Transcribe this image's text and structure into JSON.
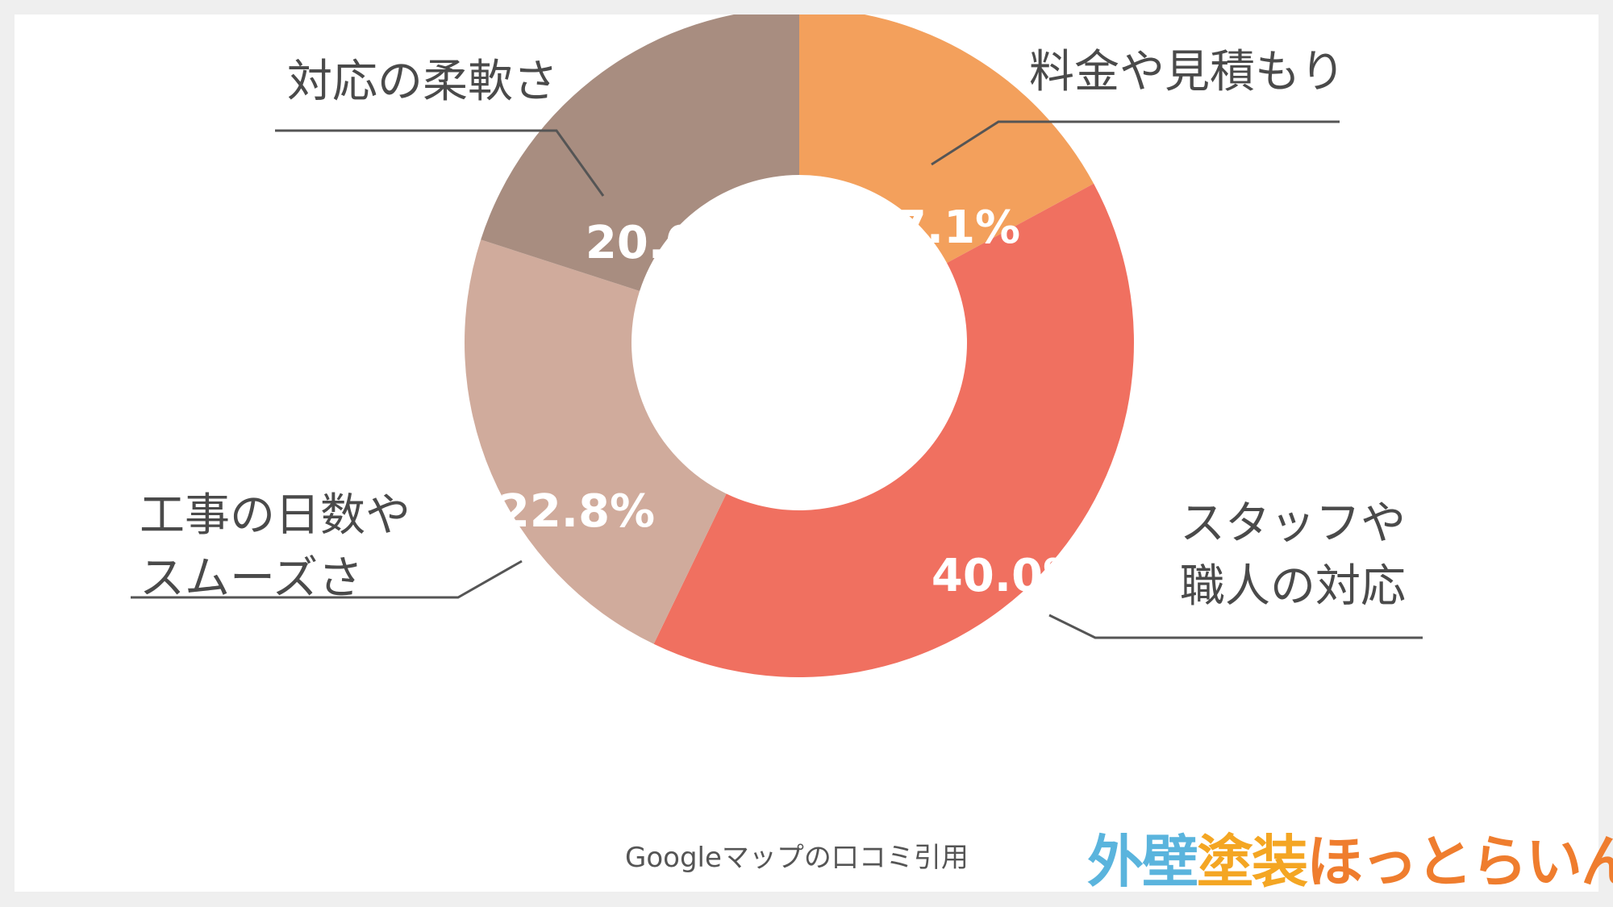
{
  "chart_data": {
    "type": "pie",
    "variant": "donut",
    "slices": [
      {
        "label": "料金や見積もり",
        "value": 17.1,
        "display": "17.1%",
        "color": "#f3a05c"
      },
      {
        "label": "スタッフや\n職人の対応",
        "value": 40.0,
        "display": "40.0%",
        "color": "#f07060"
      },
      {
        "label": "工事の日数や\nスムーズさ",
        "value": 22.8,
        "display": "22.8%",
        "color": "#d0ab9c"
      },
      {
        "label": "対応の柔軟さ",
        "value": 20.0,
        "display": "20.0%",
        "color": "#a88d80"
      }
    ],
    "start": "top",
    "direction": "clockwise"
  },
  "source": "Googleマップの口コミ引用",
  "logo": {
    "part1": "外壁",
    "part2": "塗装",
    "part3": "ほっとらいん"
  }
}
